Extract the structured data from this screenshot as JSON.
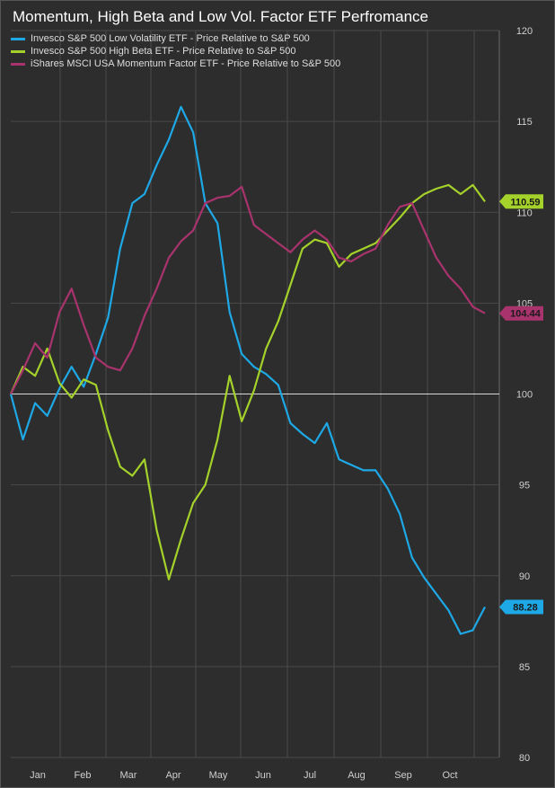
{
  "chart_data": {
    "type": "line",
    "title": "Momentum, High Beta and Low Vol. Factor ETF Perfromance",
    "xlabel": "",
    "ylabel": "",
    "x_tick_labels": [
      "Jan",
      "Feb",
      "Mar",
      "Apr",
      "May",
      "Jun",
      "Jul",
      "Aug",
      "Sep",
      "Oct"
    ],
    "y_tick_labels": [
      "80",
      "85",
      "90",
      "95",
      "100",
      "105",
      "110",
      "115",
      "120"
    ],
    "ylim": [
      80,
      120
    ],
    "reference_line": 100,
    "grid": true,
    "legend_position": "top-left",
    "series": [
      {
        "name": "Invesco S&P 500 Low Volatility ETF - Price Relative to S&P 500",
        "color": "#1ea8e6",
        "end_label": "88.28",
        "values": [
          100.0,
          97.5,
          99.5,
          98.8,
          100.3,
          101.5,
          100.4,
          102.2,
          104.2,
          108.0,
          110.5,
          111.0,
          112.6,
          114.0,
          115.8,
          114.4,
          110.5,
          109.4,
          104.5,
          102.2,
          101.5,
          101.1,
          100.5,
          98.4,
          97.8,
          97.3,
          98.4,
          96.4,
          96.1,
          95.8,
          95.8,
          94.8,
          93.4,
          91.0,
          89.9,
          89.0,
          88.1,
          86.8,
          87.0,
          88.28
        ]
      },
      {
        "name": "Invesco S&P 500 High Beta ETF - Price Relative to S&P 500",
        "color": "#a4d12a",
        "end_label": "110.59",
        "values": [
          100.0,
          101.5,
          101.0,
          102.5,
          100.6,
          99.8,
          100.8,
          100.5,
          98.0,
          96.0,
          95.5,
          96.4,
          92.5,
          89.8,
          92.0,
          94.0,
          95.0,
          97.5,
          101.0,
          98.5,
          100.2,
          102.5,
          104.0,
          106.0,
          108.0,
          108.5,
          108.3,
          107.0,
          107.7,
          108.0,
          108.3,
          109.0,
          109.7,
          110.5,
          111.0,
          111.3,
          111.5,
          111.0,
          111.5,
          110.59
        ]
      },
      {
        "name": "iShares MSCI USA Momentum Factor ETF - Price Relative to S&P 500",
        "color": "#a8336d",
        "end_label": "104.44",
        "values": [
          100.0,
          101.3,
          102.8,
          102.0,
          104.5,
          105.8,
          103.8,
          102.0,
          101.5,
          101.3,
          102.5,
          104.3,
          105.8,
          107.5,
          108.4,
          109.0,
          110.5,
          110.8,
          110.9,
          111.4,
          109.3,
          108.8,
          108.3,
          107.8,
          108.5,
          109.0,
          108.5,
          107.5,
          107.3,
          107.7,
          108.0,
          109.3,
          110.3,
          110.5,
          109.0,
          107.5,
          106.5,
          105.8,
          104.8,
          104.44
        ]
      }
    ]
  }
}
